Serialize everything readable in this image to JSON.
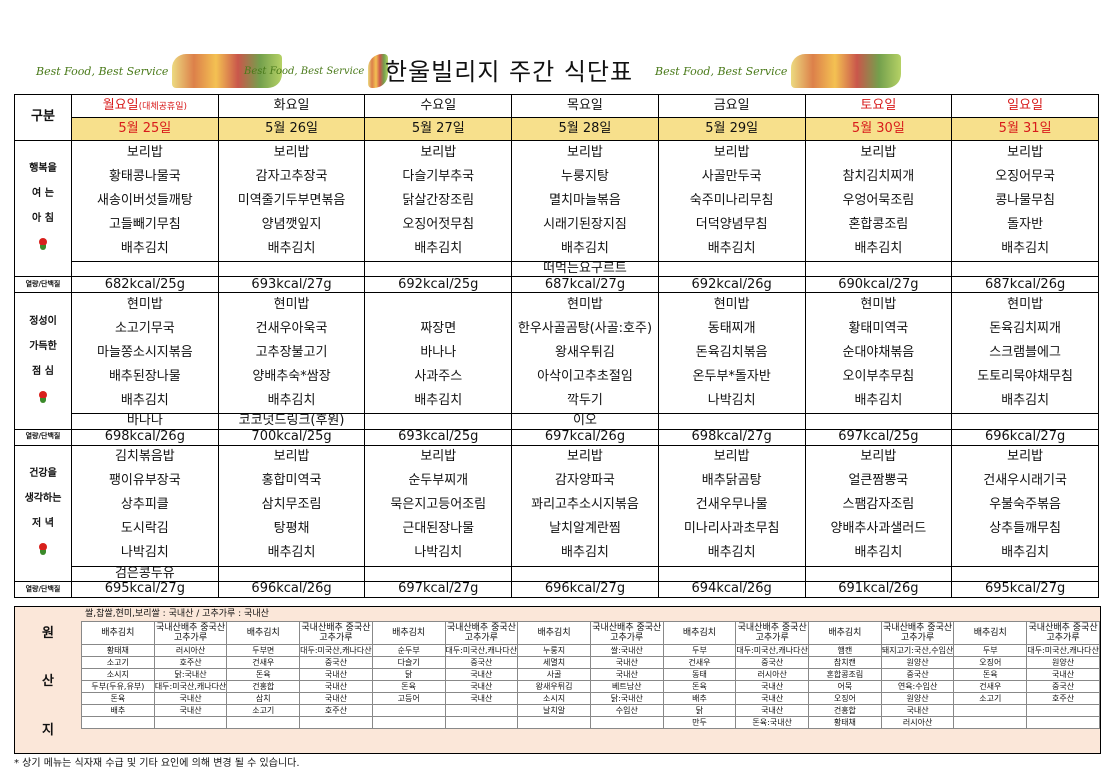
{
  "header": {
    "title": "한울빌리지 주간 식단표",
    "slogan": "Best Food, Best Service"
  },
  "table": {
    "gubun": "구분",
    "days": [
      {
        "day": "월요일",
        "note": "(대체공휴일)",
        "date": "5월 25일",
        "color": "#d81b1b"
      },
      {
        "day": "화요일",
        "note": "",
        "date": "5월 26일",
        "color": "#111111"
      },
      {
        "day": "수요일",
        "note": "",
        "date": "5월 27일",
        "color": "#111111"
      },
      {
        "day": "목요일",
        "note": "",
        "date": "5월 28일",
        "color": "#111111"
      },
      {
        "day": "금요일",
        "note": "",
        "date": "5월 29일",
        "color": "#111111"
      },
      {
        "day": "토요일",
        "note": "",
        "date": "5월 30일",
        "color": "#d81b1b"
      },
      {
        "day": "일요일",
        "note": "",
        "date": "5월 31일",
        "color": "#d81b1b"
      }
    ],
    "kcal_label": "열량/단백질",
    "breakfast": {
      "label": [
        "행복을",
        "여 는",
        "아 침"
      ],
      "rows": [
        [
          "보리밥",
          "보리밥",
          "보리밥",
          "보리밥",
          "보리밥",
          "보리밥",
          "보리밥"
        ],
        [
          "황태콩나물국",
          "감자고추장국",
          "다슬기부추국",
          "누룽지탕",
          "사골만두국",
          "참치김치찌개",
          "오징어무국"
        ],
        [
          "새송이버섯들깨탕",
          "미역줄기두부면볶음",
          "닭살간장조림",
          "멸치마늘볶음",
          "숙주미나리무침",
          "우엉어묵조림",
          "콩나물무침"
        ],
        [
          "고들빼기무침",
          "양념깻잎지",
          "오징어젓무침",
          "시래기된장지짐",
          "더덕양념무침",
          "혼합콩조림",
          "돌자반"
        ],
        [
          "배추김치",
          "배추김치",
          "배추김치",
          "배추김치",
          "배추김치",
          "배추김치",
          "배추김치"
        ]
      ],
      "snack": [
        "",
        "",
        "",
        "떠먹는요구르트",
        "",
        "",
        ""
      ],
      "kcal": [
        "682kcal/25g",
        "693kcal/27g",
        "692kcal/25g",
        "687kcal/27g",
        "692kcal/26g",
        "690kcal/27g",
        "687kcal/26g"
      ]
    },
    "lunch": {
      "label": [
        "정성이",
        "가득한",
        "점 심"
      ],
      "rows": [
        [
          "현미밥",
          "현미밥",
          "",
          "현미밥",
          "현미밥",
          "현미밥",
          "현미밥"
        ],
        [
          "소고기무국",
          "건새우아욱국",
          "짜장면",
          "한우사골곰탕(사골:호주)",
          "동태찌개",
          "황태미역국",
          "돈육김치찌개"
        ],
        [
          "마늘쫑소시지볶음",
          "고추장불고기",
          "바나나",
          "왕새우튀김",
          "돈육김치볶음",
          "순대야채볶음",
          "스크램블에그"
        ],
        [
          "배추된장나물",
          "양배추숙*쌈장",
          "사과주스",
          "아삭이고추초절임",
          "온두부*돌자반",
          "오이부추무침",
          "도토리묵야채무침"
        ],
        [
          "배추김치",
          "배추김치",
          "배추김치",
          "깍두기",
          "나박김치",
          "배추김치",
          "배추김치"
        ]
      ],
      "snack": [
        "바나나",
        "코코넛드링크(후원)",
        "",
        "이오",
        "",
        "",
        ""
      ],
      "kcal": [
        "698kcal/26g",
        "700kcal/25g",
        "693kcal/25g",
        "697kcal/26g",
        "698kcal/27g",
        "697kcal/25g",
        "696kcal/27g"
      ]
    },
    "dinner": {
      "label": [
        "건강을",
        "생각하는",
        "저 녁"
      ],
      "rows": [
        [
          "김치볶음밥",
          "보리밥",
          "보리밥",
          "보리밥",
          "보리밥",
          "보리밥",
          "보리밥"
        ],
        [
          "팽이유부장국",
          "홍합미역국",
          "순두부찌개",
          "감자양파국",
          "배추닭곰탕",
          "얼큰짬뽕국",
          "건새우시래기국"
        ],
        [
          "상추피클",
          "삼치무조림",
          "묵은지고등어조림",
          "꽈리고추소시지볶음",
          "건새우무나물",
          "스팸감자조림",
          "우불숙주볶음"
        ],
        [
          "도시락김",
          "탕평채",
          "근대된장나물",
          "날치알계란찜",
          "미나리사과초무침",
          "양배추사과샐러드",
          "상추들깨무침"
        ],
        [
          "나박김치",
          "배추김치",
          "나박김치",
          "배추김치",
          "배추김치",
          "배추김치",
          "배추김치"
        ]
      ],
      "snack": [
        "검은콩두유",
        "",
        "",
        "",
        "",
        "",
        ""
      ],
      "kcal": [
        "695kcal/27g",
        "696kcal/26g",
        "697kcal/27g",
        "696kcal/27g",
        "694kcal/26g",
        "691kcal/26g",
        "695kcal/27g"
      ]
    }
  },
  "origin": {
    "label": [
      "원",
      "산",
      "지"
    ],
    "note": "쌀,찹쌀,현미,보리쌀 : 국내산 / 고추가루 : 국내산",
    "header": [
      "배추김치",
      "국내산배추 중국산고추가루",
      "배추김치",
      "국내산배추 중국산고추가루",
      "배추김치",
      "국내산배추 중국산고추가루",
      "배추김치",
      "국내산배추 중국산고추가루",
      "배추김치",
      "국내산배추 중국산고추가루",
      "배추김치",
      "국내산배추 중국산고추가루",
      "배추김치",
      "국내산배추 중국산고추가루"
    ],
    "rows": [
      [
        "황태채",
        "러시아산",
        "두부면",
        "대두:미국산,캐나다산,중국산",
        "순두부",
        "대두:미국산,캐나다산,중국산",
        "누룽지",
        "쌀:국내산",
        "두부",
        "대두:미국산,캐나다산,중국산",
        "햄캔",
        "돼지고기:국산,수입산",
        "두부",
        "대두:미국산,캐나다산"
      ],
      [
        "소고기",
        "호주산",
        "건새우",
        "중국산",
        "다슬기",
        "중국산",
        "세멸치",
        "국내산",
        "건새우",
        "중국산",
        "참치캔",
        "원양산",
        "오징어",
        "원양산"
      ],
      [
        "소시지",
        "닭:국내산",
        "돈육",
        "국내산",
        "닭",
        "국내산",
        "사골",
        "국내산",
        "동태",
        "러시아산",
        "혼합콩조림",
        "중국산",
        "돈육",
        "국내산"
      ],
      [
        "두부(두유,유부)",
        "대두:미국산,캐나다산",
        "건홍합",
        "국내산",
        "돈육",
        "국내산",
        "왕새우튀김",
        "베트남산",
        "돈육",
        "국내산",
        "어묵",
        "연육:수입산",
        "건새우",
        "중국산"
      ],
      [
        "돈육",
        "국내산",
        "삼치",
        "국내산",
        "고등어",
        "국내산",
        "소시지",
        "닭:국내산",
        "배추",
        "국내산",
        "오징어",
        "원양산",
        "소고기",
        "호주산"
      ],
      [
        "배추",
        "국내산",
        "소고기",
        "호주산",
        "",
        "",
        "날치알",
        "수입산",
        "닭",
        "국내산",
        "건홍합",
        "국내산",
        "",
        ""
      ],
      [
        "",
        "",
        "",
        "",
        "",
        "",
        "",
        "",
        "만두",
        "돈육:국내산",
        "황태채",
        "러시아산",
        "",
        ""
      ]
    ]
  },
  "footnote": "* 상기 메뉴는 식자재 수급 및 기타 요인에 의해 변경 될 수 있습니다."
}
